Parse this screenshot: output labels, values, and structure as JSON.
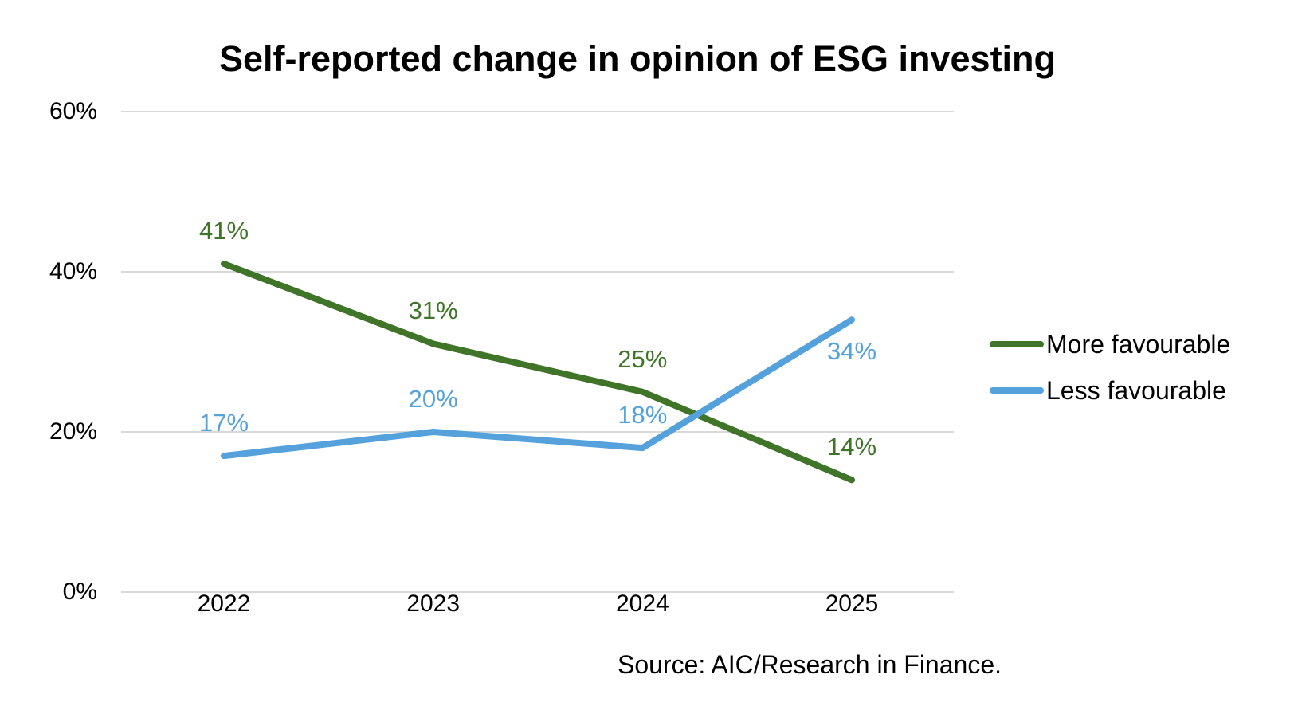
{
  "page": {
    "background": "#ffffff"
  },
  "chart_data": {
    "type": "line",
    "title": "Self-reported change in opinion of ESG investing",
    "categories": [
      "2022",
      "2023",
      "2024",
      "2025"
    ],
    "series": [
      {
        "name": "More favourable",
        "color": "#3f7429",
        "values": [
          41,
          31,
          25,
          14
        ],
        "data_labels": [
          "41%",
          "31%",
          "25%",
          "14%"
        ],
        "label_positions": [
          "above",
          "above",
          "above",
          "above"
        ]
      },
      {
        "name": "Less favourable",
        "color": "#54a1dc",
        "values": [
          17,
          20,
          18,
          34
        ],
        "data_labels": [
          "17%",
          "20%",
          "18%",
          "34%"
        ],
        "label_positions": [
          "above",
          "above",
          "above",
          "below"
        ]
      }
    ],
    "xlabel": "",
    "ylabel": "",
    "ylim": [
      0,
      60
    ],
    "y_ticks": [
      {
        "value": 0,
        "label": "0%"
      },
      {
        "value": 20,
        "label": "20%"
      },
      {
        "value": 40,
        "label": "40%"
      },
      {
        "value": 60,
        "label": "60%"
      }
    ],
    "grid": "horizontal-only",
    "grid_color": "#d9d9d9",
    "legend_position": "right",
    "legend": [
      "More favourable",
      "Less favourable"
    ]
  },
  "source": "Source: AIC/Research in Finance."
}
